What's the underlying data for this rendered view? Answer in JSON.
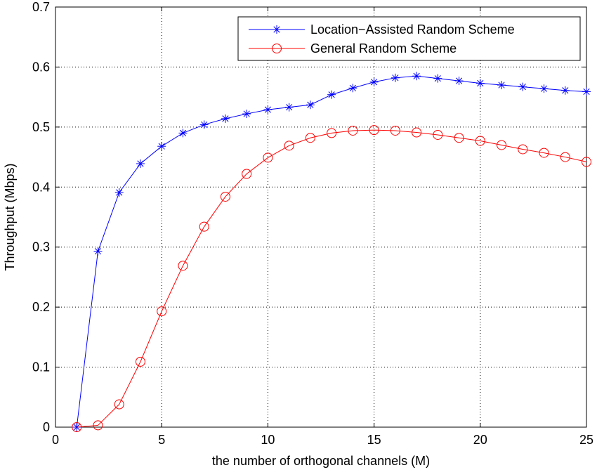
{
  "chart_data": {
    "type": "line",
    "title": "",
    "xlabel": "the number of orthogonal channels (M)",
    "ylabel": "Throughput (Mbps)",
    "xlim": [
      0,
      25
    ],
    "ylim": [
      0,
      0.7
    ],
    "xticks": [
      0,
      5,
      10,
      15,
      20,
      25
    ],
    "yticks": [
      0,
      0.1,
      0.2,
      0.3,
      0.4,
      0.5,
      0.6,
      0.7
    ],
    "xtick_labels": [
      "0",
      "5",
      "10",
      "15",
      "20",
      "25"
    ],
    "ytick_labels": [
      "0",
      "0.1",
      "0.2",
      "0.3",
      "0.4",
      "0.5",
      "0.6",
      "0.7"
    ],
    "grid": true,
    "legend_position": "top-right",
    "x": [
      1,
      2,
      3,
      4,
      5,
      6,
      7,
      8,
      9,
      10,
      11,
      12,
      13,
      14,
      15,
      16,
      17,
      18,
      19,
      20,
      21,
      22,
      23,
      24,
      25
    ],
    "series": [
      {
        "name": "Location−Assisted Random Scheme",
        "color": "#0000ff",
        "marker": "asterisk",
        "values": [
          0.0,
          0.293,
          0.391,
          0.439,
          0.468,
          0.49,
          0.504,
          0.514,
          0.522,
          0.529,
          0.533,
          0.537,
          0.554,
          0.565,
          0.575,
          0.582,
          0.585,
          0.581,
          0.577,
          0.573,
          0.57,
          0.567,
          0.564,
          0.561,
          0.559
        ]
      },
      {
        "name": "General Random Scheme",
        "color": "#ff0000",
        "marker": "circle",
        "values": [
          0.0,
          0.003,
          0.038,
          0.109,
          0.193,
          0.269,
          0.334,
          0.384,
          0.422,
          0.449,
          0.469,
          0.482,
          0.49,
          0.494,
          0.495,
          0.494,
          0.491,
          0.487,
          0.482,
          0.477,
          0.47,
          0.463,
          0.457,
          0.45,
          0.442
        ]
      }
    ]
  }
}
